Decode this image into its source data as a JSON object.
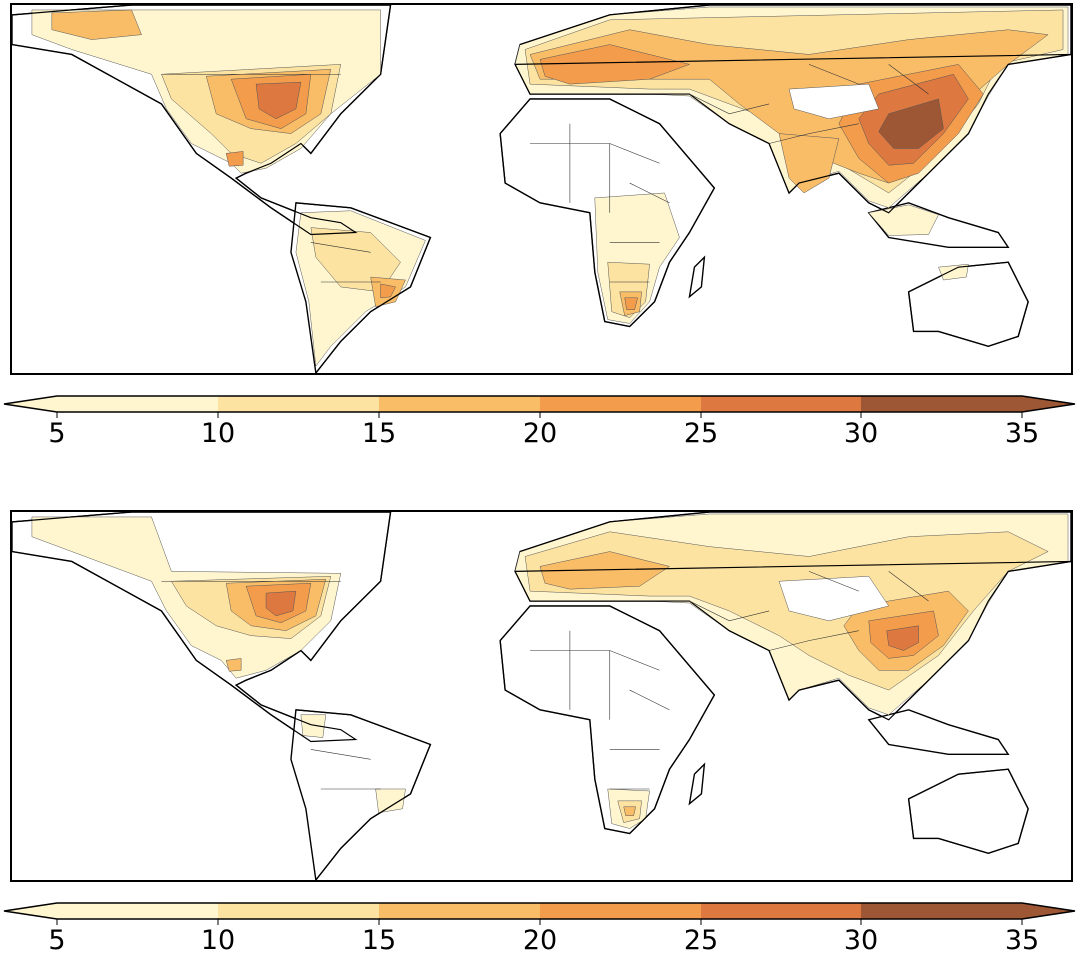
{
  "colors": {
    "bin_5_10": "#fff6cf",
    "bin_10_15": "#fde3a1",
    "bin_15_20": "#f9bd68",
    "bin_20_25": "#f29c4c",
    "bin_25_30": "#dd7840",
    "bin_30_35": "#9e5735",
    "land_line": "#000000"
  },
  "maps": [
    {
      "id": "top",
      "colorbar": {
        "ticks": [
          "5",
          "10",
          "15",
          "20",
          "25",
          "30",
          "35"
        ],
        "extend": "both"
      }
    },
    {
      "id": "bottom",
      "colorbar": {
        "ticks": [
          "5",
          "10",
          "15",
          "20",
          "25",
          "30",
          "35"
        ],
        "extend": "both"
      }
    }
  ]
}
